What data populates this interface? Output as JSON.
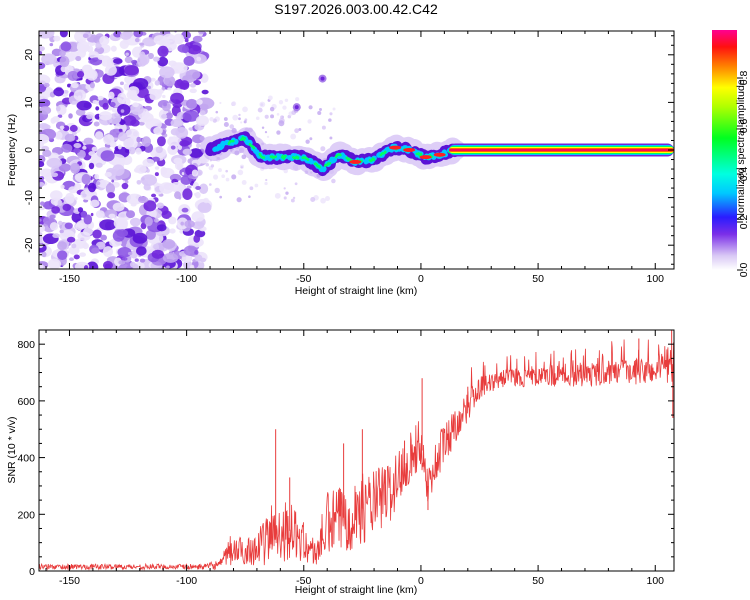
{
  "title": "S197.2026.003.00.42.C42",
  "colors": {
    "snr_line": "#e83c3c",
    "axis": "#000000",
    "background": "#ffffff"
  },
  "chart_data": [
    {
      "type": "heatmap",
      "name": "spectrogram",
      "xlabel": "Height of straight line (km)",
      "ylabel": "Frequency (Hz)",
      "xlim": [
        -163,
        108
      ],
      "ylim": [
        -25,
        25
      ],
      "xticks": [
        -150,
        -100,
        -50,
        0,
        50,
        100
      ],
      "yticks": [
        -20,
        -10,
        0,
        10,
        20
      ],
      "noise_region_km": [
        -163,
        -92
      ],
      "dominant_ridge": [
        {
          "x": -90,
          "y": 0
        },
        {
          "x": -82,
          "y": 1.5
        },
        {
          "x": -75,
          "y": 2.5
        },
        {
          "x": -68,
          "y": -1.5
        },
        {
          "x": -58,
          "y": -1.5
        },
        {
          "x": -50,
          "y": -1.5
        },
        {
          "x": -42,
          "y": -4
        },
        {
          "x": -35,
          "y": -1
        },
        {
          "x": -28,
          "y": -2.5
        },
        {
          "x": -20,
          "y": -2
        },
        {
          "x": -12,
          "y": 0.5
        },
        {
          "x": -5,
          "y": 0
        },
        {
          "x": 2,
          "y": -1.5
        },
        {
          "x": 8,
          "y": -1
        },
        {
          "x": 15,
          "y": 0
        },
        {
          "x": 30,
          "y": 0
        },
        {
          "x": 108,
          "y": 0
        }
      ],
      "isolated_blobs": [
        {
          "x": -53,
          "y": 9
        },
        {
          "x": -42,
          "y": 15
        }
      ],
      "colorbar": {
        "label": "Normalized spectral amplitude",
        "ticks": [
          "0.0",
          "0.2",
          "0.4",
          "0.6",
          "0.8"
        ],
        "range": [
          0,
          1
        ]
      }
    },
    {
      "type": "line",
      "name": "snr",
      "xlabel": "Height of straight line (km)",
      "ylabel": "SNR (10 * v/v)",
      "xlim": [
        -163,
        108
      ],
      "ylim": [
        0,
        850
      ],
      "xticks": [
        -150,
        -100,
        -50,
        0,
        50,
        100
      ],
      "yticks": [
        0,
        200,
        400,
        600,
        800
      ],
      "series": [
        {
          "name": "SNR",
          "envelope": [
            {
              "x": -163,
              "base": 15,
              "amp": 12
            },
            {
              "x": -92,
              "base": 15,
              "amp": 12
            },
            {
              "x": -85,
              "base": 25,
              "amp": 25
            },
            {
              "x": -82,
              "base": 70,
              "amp": 70
            },
            {
              "x": -75,
              "base": 70,
              "amp": 60
            },
            {
              "x": -68,
              "base": 90,
              "amp": 90
            },
            {
              "x": -62,
              "base": 150,
              "amp": 160
            },
            {
              "x": -55,
              "base": 140,
              "amp": 120
            },
            {
              "x": -45,
              "base": 60,
              "amp": 60
            },
            {
              "x": -40,
              "base": 160,
              "amp": 150
            },
            {
              "x": -30,
              "base": 200,
              "amp": 160
            },
            {
              "x": -20,
              "base": 240,
              "amp": 150
            },
            {
              "x": -12,
              "base": 290,
              "amp": 140
            },
            {
              "x": -6,
              "base": 390,
              "amp": 120
            },
            {
              "x": 0,
              "base": 450,
              "amp": 110
            },
            {
              "x": 3,
              "base": 300,
              "amp": 80
            },
            {
              "x": 8,
              "base": 420,
              "amp": 110
            },
            {
              "x": 15,
              "base": 520,
              "amp": 80
            },
            {
              "x": 25,
              "base": 640,
              "amp": 50
            },
            {
              "x": 35,
              "base": 680,
              "amp": 40
            },
            {
              "x": 60,
              "base": 685,
              "amp": 45
            },
            {
              "x": 85,
              "base": 700,
              "amp": 55
            },
            {
              "x": 108,
              "base": 710,
              "amp": 60
            }
          ],
          "spikes": [
            {
              "x": -62,
              "y": 500
            },
            {
              "x": -56,
              "y": 330
            },
            {
              "x": -33,
              "y": 450
            },
            {
              "x": -25,
              "y": 500
            },
            {
              "x": -7,
              "y": 460
            },
            {
              "x": 0.5,
              "y": 680
            },
            {
              "x": 3,
              "y": 215
            },
            {
              "x": 20,
              "y": 650
            },
            {
              "x": 93,
              "y": 820
            },
            {
              "x": 107,
              "y": 850
            },
            {
              "x": 107.5,
              "y": 540
            }
          ]
        }
      ]
    }
  ]
}
